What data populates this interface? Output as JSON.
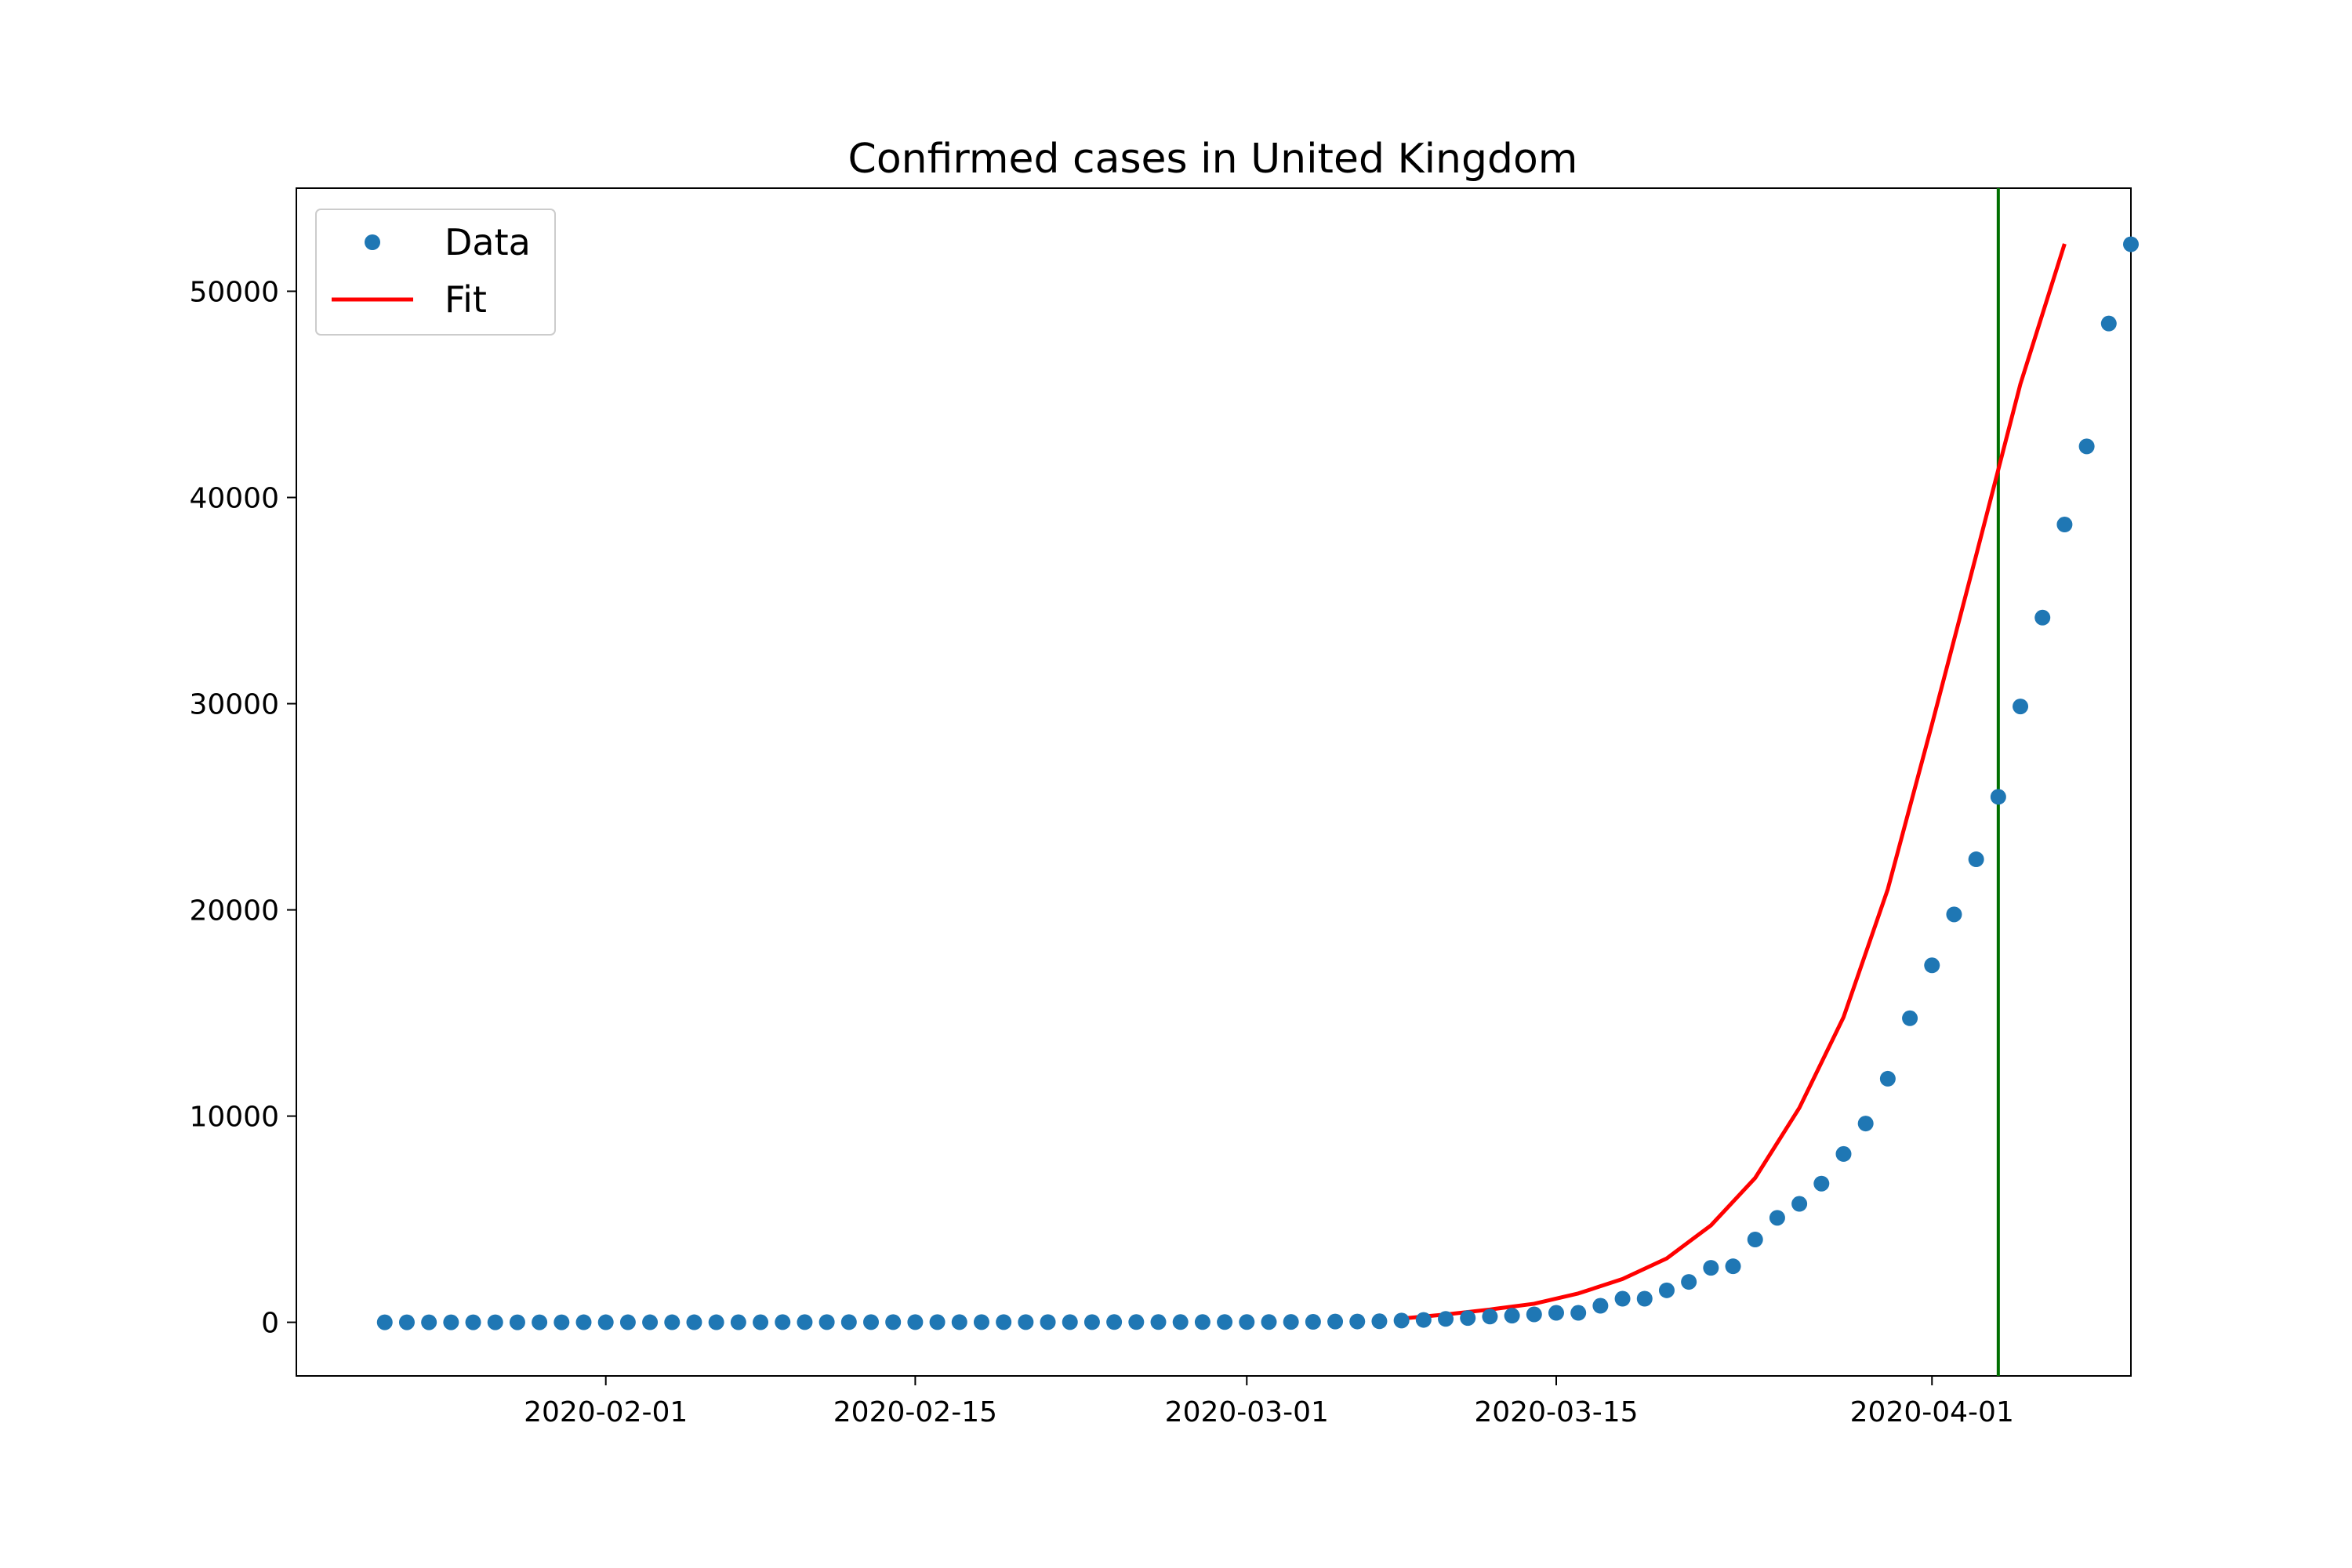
{
  "chart_data": {
    "type": "scatter",
    "title": "Confirmed cases in United Kingdom",
    "xlabel": "",
    "ylabel": "",
    "x_axis_type": "date",
    "xlim": [
      "2020-01-18",
      "2020-04-10"
    ],
    "ylim": [
      -2600,
      55000
    ],
    "x_ticks": [
      "2020-02-01",
      "2020-02-15",
      "2020-03-01",
      "2020-03-15",
      "2020-04-01"
    ],
    "y_ticks": [
      0,
      10000,
      20000,
      30000,
      40000,
      50000
    ],
    "grid": false,
    "legend": {
      "position": "top-left",
      "entries": [
        "Data",
        "Fit"
      ]
    },
    "series": [
      {
        "name": "Data",
        "kind": "scatter",
        "color": "#1f77b4",
        "start_date": "2020-01-22",
        "values": [
          0,
          0,
          0,
          0,
          0,
          0,
          0,
          0,
          0,
          2,
          2,
          2,
          2,
          2,
          2,
          2,
          3,
          3,
          8,
          8,
          9,
          9,
          9,
          9,
          9,
          9,
          9,
          9,
          9,
          9,
          9,
          9,
          9,
          13,
          13,
          13,
          13,
          13,
          13,
          13,
          15,
          20,
          23,
          36,
          40,
          51,
          86,
          116,
          164,
          209,
          278,
          321,
          383,
          460,
          460,
          802,
          1144,
          1145,
          1551,
          1960,
          2642,
          2716,
          4014,
          5067,
          5745,
          6726,
          8164,
          9640,
          11812,
          14745,
          17312,
          19780,
          22453,
          25481,
          29865,
          34173,
          38689,
          42477,
          48436,
          52279
        ]
      },
      {
        "name": "Fit",
        "kind": "line",
        "color": "#ff0000",
        "x": [
          "2020-03-08",
          "2020-03-10",
          "2020-03-12",
          "2020-03-14",
          "2020-03-16",
          "2020-03-18",
          "2020-03-20",
          "2020-03-22",
          "2020-03-24",
          "2020-03-26",
          "2020-03-28",
          "2020-03-30",
          "2020-04-01",
          "2020-04-03",
          "2020-04-05",
          "2020-04-07"
        ],
        "values": [
          180,
          380,
          620,
          900,
          1400,
          2100,
          3100,
          4700,
          7000,
          10400,
          14800,
          21000,
          29000,
          37200,
          45500,
          52300
        ]
      }
    ],
    "vertical_line": {
      "x": "2020-04-04",
      "color": "#007000"
    }
  }
}
